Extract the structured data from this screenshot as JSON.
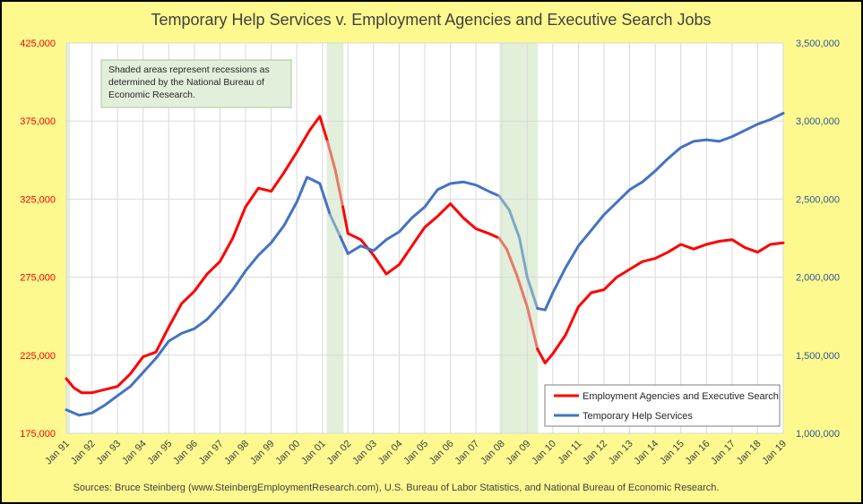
{
  "chart_data": {
    "type": "line",
    "title": "Temporary Help Services v. Employment Agencies and Executive Search Jobs",
    "x_categories": [
      "Jan 91",
      "Jan 92",
      "Jan 93",
      "Jan 94",
      "Jan 95",
      "Jan 96",
      "Jan 97",
      "Jan 98",
      "Jan 99",
      "Jan 00",
      "Jan 01",
      "Jan 02",
      "Jan 03",
      "Jan 04",
      "Jan 05",
      "Jan 06",
      "Jan 07",
      "Jan 08",
      "Jan 09",
      "Jan 10",
      "Jan 11",
      "Jan 12",
      "Jan 13",
      "Jan 14",
      "Jan 15",
      "Jan 16",
      "Jan 17",
      "Jan 18",
      "Jan 19"
    ],
    "y_left": {
      "ticks": [
        "175,000",
        "225,000",
        "275,000",
        "325,000",
        "375,000",
        "425,000"
      ],
      "min": 175000,
      "max": 425000,
      "color": "#ff0000"
    },
    "y_right": {
      "ticks": [
        "1,000,000",
        "1,500,000",
        "2,000,000",
        "2,500,000",
        "3,000,000",
        "3,500,000"
      ],
      "min": 1000000,
      "max": 3500000,
      "color": "#4472c4"
    },
    "grid": true,
    "recessions": [
      {
        "start": 2001.17,
        "end": 2001.83
      },
      {
        "start": 2007.92,
        "end": 2009.42
      }
    ],
    "annotation": "Shaded areas represent recessions as determined by the National Bureau of Economic Research.",
    "legend": {
      "placement": "bottom-right"
    },
    "series": [
      {
        "name": "Employment Agencies and Executive Search",
        "axis": "left",
        "color": "#ff0000",
        "recession_color": "#e8786a",
        "points": [
          [
            1991.0,
            210000
          ],
          [
            1991.3,
            204000
          ],
          [
            1991.6,
            201000
          ],
          [
            1992.0,
            201000
          ],
          [
            1992.5,
            203000
          ],
          [
            1993.0,
            205000
          ],
          [
            1993.5,
            213000
          ],
          [
            1994.0,
            224000
          ],
          [
            1994.5,
            227000
          ],
          [
            1995.0,
            243000
          ],
          [
            1995.5,
            258000
          ],
          [
            1996.0,
            266000
          ],
          [
            1996.5,
            277000
          ],
          [
            1997.0,
            285000
          ],
          [
            1997.5,
            300000
          ],
          [
            1998.0,
            320000
          ],
          [
            1998.5,
            332000
          ],
          [
            1999.0,
            330000
          ],
          [
            1999.5,
            342000
          ],
          [
            2000.0,
            355000
          ],
          [
            2000.5,
            369000
          ],
          [
            2000.9,
            378000
          ],
          [
            2001.2,
            362000
          ],
          [
            2001.5,
            344000
          ],
          [
            2001.8,
            320000
          ],
          [
            2002.0,
            303000
          ],
          [
            2002.5,
            299000
          ],
          [
            2003.0,
            289000
          ],
          [
            2003.5,
            277000
          ],
          [
            2004.0,
            283000
          ],
          [
            2004.5,
            295000
          ],
          [
            2005.0,
            307000
          ],
          [
            2005.5,
            314000
          ],
          [
            2006.0,
            322000
          ],
          [
            2006.5,
            313000
          ],
          [
            2007.0,
            306000
          ],
          [
            2007.5,
            303000
          ],
          [
            2007.9,
            300000
          ],
          [
            2008.2,
            293000
          ],
          [
            2008.6,
            276000
          ],
          [
            2009.0,
            256000
          ],
          [
            2009.4,
            229000
          ],
          [
            2009.7,
            220000
          ],
          [
            2010.0,
            226000
          ],
          [
            2010.5,
            238000
          ],
          [
            2011.0,
            256000
          ],
          [
            2011.5,
            265000
          ],
          [
            2012.0,
            267000
          ],
          [
            2012.5,
            275000
          ],
          [
            2013.0,
            280000
          ],
          [
            2013.5,
            285000
          ],
          [
            2014.0,
            287000
          ],
          [
            2014.5,
            291000
          ],
          [
            2015.0,
            296000
          ],
          [
            2015.5,
            293000
          ],
          [
            2016.0,
            296000
          ],
          [
            2016.5,
            298000
          ],
          [
            2017.0,
            299000
          ],
          [
            2017.5,
            294000
          ],
          [
            2018.0,
            291000
          ],
          [
            2018.5,
            296000
          ],
          [
            2019.0,
            297000
          ]
        ]
      },
      {
        "name": "Temporary Help Services",
        "axis": "right",
        "color": "#4472c4",
        "recession_color": "#7fa6c9",
        "points": [
          [
            1991.0,
            1150000
          ],
          [
            1991.5,
            1115000
          ],
          [
            1992.0,
            1130000
          ],
          [
            1992.5,
            1180000
          ],
          [
            1993.0,
            1240000
          ],
          [
            1993.5,
            1300000
          ],
          [
            1994.0,
            1390000
          ],
          [
            1994.5,
            1480000
          ],
          [
            1995.0,
            1590000
          ],
          [
            1995.5,
            1640000
          ],
          [
            1996.0,
            1670000
          ],
          [
            1996.5,
            1730000
          ],
          [
            1997.0,
            1820000
          ],
          [
            1997.5,
            1920000
          ],
          [
            1998.0,
            2040000
          ],
          [
            1998.5,
            2140000
          ],
          [
            1999.0,
            2220000
          ],
          [
            1999.5,
            2330000
          ],
          [
            2000.0,
            2480000
          ],
          [
            2000.4,
            2640000
          ],
          [
            2000.9,
            2600000
          ],
          [
            2001.3,
            2400000
          ],
          [
            2001.7,
            2260000
          ],
          [
            2002.0,
            2150000
          ],
          [
            2002.5,
            2200000
          ],
          [
            2003.0,
            2170000
          ],
          [
            2003.5,
            2240000
          ],
          [
            2004.0,
            2290000
          ],
          [
            2004.5,
            2380000
          ],
          [
            2005.0,
            2450000
          ],
          [
            2005.5,
            2560000
          ],
          [
            2006.0,
            2600000
          ],
          [
            2006.5,
            2610000
          ],
          [
            2007.0,
            2590000
          ],
          [
            2007.5,
            2550000
          ],
          [
            2007.9,
            2520000
          ],
          [
            2008.3,
            2430000
          ],
          [
            2008.7,
            2250000
          ],
          [
            2009.0,
            2000000
          ],
          [
            2009.4,
            1800000
          ],
          [
            2009.7,
            1790000
          ],
          [
            2010.0,
            1900000
          ],
          [
            2010.5,
            2060000
          ],
          [
            2011.0,
            2200000
          ],
          [
            2011.5,
            2300000
          ],
          [
            2012.0,
            2400000
          ],
          [
            2012.5,
            2480000
          ],
          [
            2013.0,
            2560000
          ],
          [
            2013.5,
            2610000
          ],
          [
            2014.0,
            2680000
          ],
          [
            2014.5,
            2760000
          ],
          [
            2015.0,
            2830000
          ],
          [
            2015.5,
            2870000
          ],
          [
            2016.0,
            2880000
          ],
          [
            2016.5,
            2870000
          ],
          [
            2017.0,
            2900000
          ],
          [
            2017.5,
            2940000
          ],
          [
            2018.0,
            2980000
          ],
          [
            2018.5,
            3010000
          ],
          [
            2019.0,
            3050000
          ]
        ]
      }
    ],
    "footer": "Sources: Bruce Steinberg (www.SteinbergEmploymentResearch.com), U.S. Bureau of Labor Statistics, and National Bureau of Economic Research."
  }
}
